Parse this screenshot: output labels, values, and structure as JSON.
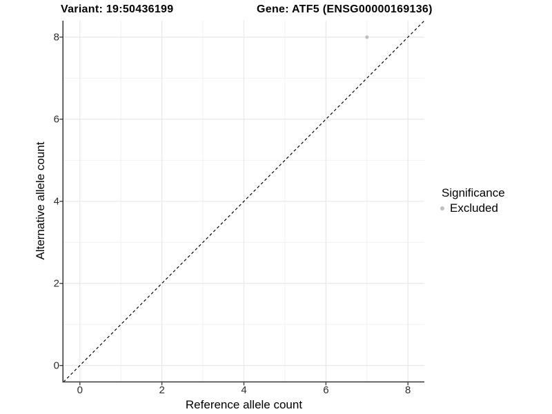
{
  "chart_data": {
    "type": "scatter",
    "title_left": "Variant: 19:50436199",
    "title_right": "Gene: ATF5 (ENSG00000169136)",
    "xlabel": "Reference allele count",
    "ylabel": "Alternative allele count",
    "xlim": [
      -0.4,
      8.4
    ],
    "ylim": [
      -0.4,
      8.4
    ],
    "xticks": [
      0,
      2,
      4,
      6,
      8
    ],
    "yticks": [
      0,
      2,
      4,
      6,
      8
    ],
    "grid": "major-even-minor-odd",
    "points": [
      {
        "x": 7,
        "y": 8,
        "series": "Excluded"
      }
    ],
    "reference_line": {
      "type": "identity",
      "style": "dashed",
      "color": "#000000"
    },
    "legend": {
      "title": "Significance",
      "position": "right",
      "items": [
        {
          "label": "Excluded",
          "color": "#bebebe",
          "marker": "circle"
        }
      ]
    },
    "colors": {
      "point": "#bebebe",
      "grid_major": "#e6e6e6",
      "grid_minor": "#f1f1f1",
      "axis_line": "#333333",
      "tick_mark": "#333333",
      "background": "#ffffff"
    }
  }
}
